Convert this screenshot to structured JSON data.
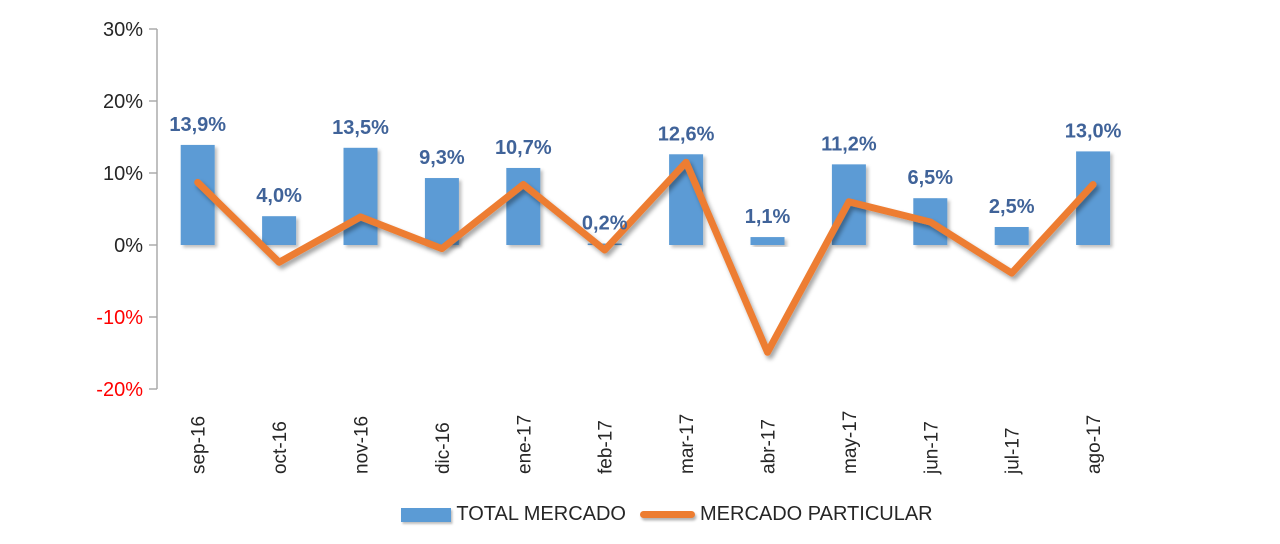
{
  "chart_data": {
    "type": "combo-bar-line",
    "title": "",
    "categories": [
      "sep-16",
      "oct-16",
      "nov-16",
      "dic-16",
      "ene-17",
      "feb-17",
      "mar-17",
      "abr-17",
      "may-17",
      "jun-17",
      "jul-17",
      "ago-17"
    ],
    "series": [
      {
        "name": "TOTAL MERCADO",
        "series_type": "bar",
        "color": "#5B9BD5",
        "label_color": "#406399",
        "values": [
          13.9,
          4.0,
          13.5,
          9.3,
          10.7,
          0.2,
          12.6,
          1.1,
          11.2,
          6.5,
          2.5,
          13.0
        ],
        "data_labels": [
          "13,9%",
          "4,0%",
          "13,5%",
          "9,3%",
          "10,7%",
          "0,2%",
          "12,6%",
          "1,1%",
          "11,2%",
          "6,5%",
          "2,5%",
          "13,0%"
        ]
      },
      {
        "name": "MERCADO PARTICULAR",
        "series_type": "line",
        "color": "#ED7D31",
        "values": [
          8.7,
          -2.4,
          3.9,
          -0.5,
          8.4,
          -0.7,
          11.5,
          -14.9,
          6.0,
          3.2,
          -3.9,
          8.4
        ]
      }
    ],
    "y_axis": {
      "min": -20,
      "max": 30,
      "step": 10,
      "ticks": [
        {
          "label": "30%",
          "value": 30
        },
        {
          "label": "20%",
          "value": 20
        },
        {
          "label": "10%",
          "value": 10
        },
        {
          "label": "0%",
          "value": 0
        },
        {
          "label": "-10%",
          "value": -10
        },
        {
          "label": "-20%",
          "value": -20
        }
      ],
      "positive_label_color": "#262626",
      "negative_label_color": "#FF0000",
      "axis_line_color": "#A6A6A6"
    },
    "x_axis": {
      "label_color": "#262626",
      "label_rotation_deg": 90
    },
    "legend": {
      "position": "bottom",
      "items": [
        "TOTAL MERCADO",
        "MERCADO PARTICULAR"
      ]
    },
    "grid": "off"
  }
}
